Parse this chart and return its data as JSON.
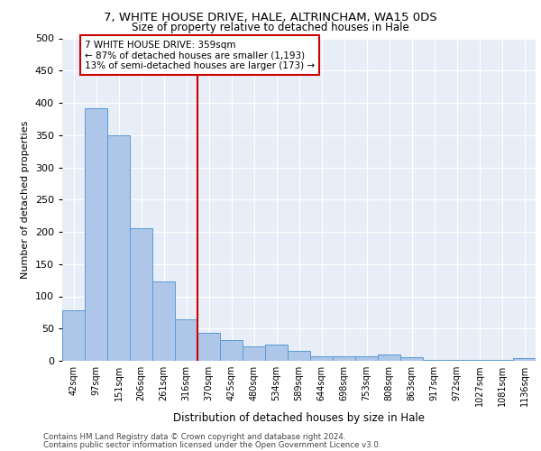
{
  "title1": "7, WHITE HOUSE DRIVE, HALE, ALTRINCHAM, WA15 0DS",
  "title2": "Size of property relative to detached houses in Hale",
  "xlabel": "Distribution of detached houses by size in Hale",
  "ylabel": "Number of detached properties",
  "bar_labels": [
    "42sqm",
    "97sqm",
    "151sqm",
    "206sqm",
    "261sqm",
    "316sqm",
    "370sqm",
    "425sqm",
    "480sqm",
    "534sqm",
    "589sqm",
    "644sqm",
    "698sqm",
    "753sqm",
    "808sqm",
    "863sqm",
    "917sqm",
    "972sqm",
    "1027sqm",
    "1081sqm",
    "1136sqm"
  ],
  "bar_values": [
    79,
    392,
    350,
    205,
    123,
    64,
    44,
    32,
    22,
    25,
    15,
    7,
    7,
    7,
    10,
    5,
    2,
    2,
    2,
    1,
    4
  ],
  "bar_color": "#aec6e8",
  "bar_edge_color": "#5b9bd5",
  "background_color": "#e8eef7",
  "grid_color": "#ffffff",
  "annotation_text": "7 WHITE HOUSE DRIVE: 359sqm\n← 87% of detached houses are smaller (1,193)\n13% of semi-detached houses are larger (173) →",
  "annotation_box_color": "#ffffff",
  "annotation_box_edge": "#cc0000",
  "vline_color": "#cc0000",
  "vline_x": 5.5,
  "ylim": [
    0,
    500
  ],
  "yticks": [
    0,
    50,
    100,
    150,
    200,
    250,
    300,
    350,
    400,
    450,
    500
  ],
  "footer1": "Contains HM Land Registry data © Crown copyright and database right 2024.",
  "footer2": "Contains public sector information licensed under the Open Government Licence v3.0."
}
